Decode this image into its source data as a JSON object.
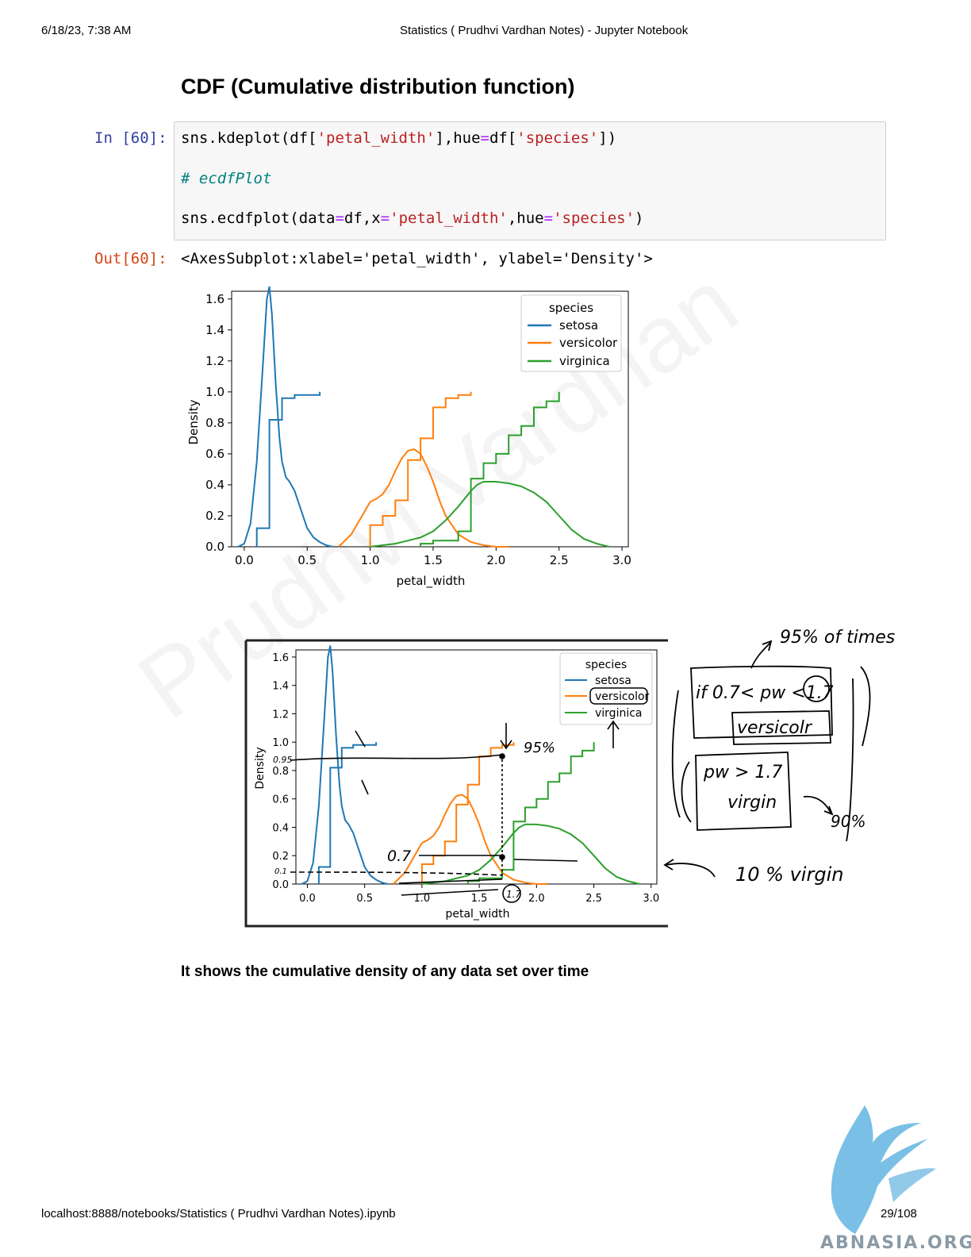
{
  "header": {
    "datetime": "6/18/23, 7:38 AM",
    "title": "Statistics ( Prudhvi Vardhan Notes) - Jupyter Notebook"
  },
  "section_title": "CDF (Cumulative distribution function)",
  "cell": {
    "in_prompt": "In [60]:",
    "code_lines": [
      "sns.kdeplot(df['petal_width'],hue=df['species'])",
      "# ecdfPlot",
      "sns.ecdfplot(data=df,x='petal_width',hue='species')"
    ],
    "out_prompt": "Out[60]:",
    "output_text": "<AxesSubplot:xlabel='petal_width', ylabel='Density'>"
  },
  "chart_data": [
    {
      "type": "line",
      "xlabel": "petal_width",
      "ylabel": "Density",
      "xlim": [
        -0.1,
        3.05
      ],
      "ylim": [
        0.0,
        1.65
      ],
      "xticks": [
        "0.0",
        "0.5",
        "1.0",
        "1.5",
        "2.0",
        "2.5",
        "3.0"
      ],
      "yticks": [
        "0.0",
        "0.2",
        "0.4",
        "0.6",
        "0.8",
        "1.0",
        "1.2",
        "1.4",
        "1.6"
      ],
      "legend_title": "species",
      "legend_position": "top-right",
      "colors": {
        "setosa": "#1f77b4",
        "versicolor": "#ff7f0e",
        "virginica": "#2ca02c"
      },
      "kde_series": [
        {
          "name": "setosa",
          "x": [
            -0.05,
            0.0,
            0.05,
            0.1,
            0.15,
            0.18,
            0.2,
            0.22,
            0.25,
            0.28,
            0.3,
            0.33,
            0.36,
            0.4,
            0.45,
            0.5,
            0.55,
            0.6,
            0.65,
            0.7
          ],
          "y": [
            0.0,
            0.02,
            0.15,
            0.55,
            1.2,
            1.6,
            1.68,
            1.5,
            1.05,
            0.7,
            0.55,
            0.45,
            0.42,
            0.36,
            0.24,
            0.12,
            0.06,
            0.03,
            0.01,
            0.0
          ]
        },
        {
          "name": "versicolor",
          "x": [
            0.75,
            0.85,
            0.95,
            1.0,
            1.05,
            1.1,
            1.15,
            1.2,
            1.25,
            1.3,
            1.35,
            1.4,
            1.45,
            1.5,
            1.55,
            1.6,
            1.7,
            1.8,
            1.9,
            2.0,
            2.1
          ],
          "y": [
            0.0,
            0.08,
            0.22,
            0.29,
            0.31,
            0.34,
            0.4,
            0.49,
            0.57,
            0.62,
            0.63,
            0.6,
            0.52,
            0.42,
            0.3,
            0.2,
            0.08,
            0.03,
            0.01,
            0.0,
            0.0
          ]
        },
        {
          "name": "virginica",
          "x": [
            1.0,
            1.2,
            1.4,
            1.5,
            1.6,
            1.7,
            1.8,
            1.85,
            1.9,
            2.0,
            2.1,
            2.2,
            2.3,
            2.4,
            2.5,
            2.6,
            2.7,
            2.8,
            2.9
          ],
          "y": [
            0.0,
            0.02,
            0.06,
            0.1,
            0.17,
            0.26,
            0.36,
            0.4,
            0.42,
            0.42,
            0.41,
            0.39,
            0.35,
            0.29,
            0.2,
            0.11,
            0.05,
            0.02,
            0.0
          ]
        }
      ],
      "ecdf_series": [
        {
          "name": "setosa",
          "x": [
            0.1,
            0.2,
            0.3,
            0.4,
            0.5,
            0.6
          ],
          "y": [
            0.12,
            0.82,
            0.96,
            0.98,
            0.98,
            1.0
          ]
        },
        {
          "name": "versicolor",
          "x": [
            1.0,
            1.1,
            1.2,
            1.3,
            1.4,
            1.5,
            1.6,
            1.7,
            1.8
          ],
          "y": [
            0.14,
            0.2,
            0.3,
            0.56,
            0.7,
            0.9,
            0.96,
            0.98,
            1.0
          ]
        },
        {
          "name": "virginica",
          "x": [
            1.4,
            1.5,
            1.7,
            1.8,
            1.9,
            2.0,
            2.1,
            2.2,
            2.3,
            2.4,
            2.5
          ],
          "y": [
            0.02,
            0.04,
            0.1,
            0.44,
            0.54,
            0.6,
            0.72,
            0.78,
            0.9,
            0.94,
            1.0
          ]
        }
      ]
    }
  ],
  "annotated_screenshot": {
    "legend_title": "species",
    "legend_items": [
      "setosa",
      "versicolor",
      "virginica"
    ],
    "xlabel": "petal_width",
    "ylabel": "Density",
    "xticks": [
      "0.0",
      "0.5",
      "1.0",
      "1.5",
      "2.0",
      "2.5",
      "3.0"
    ],
    "yticks": [
      "0.0",
      "0.2",
      "0.4",
      "0.6",
      "0.8",
      "1.0",
      "1.2",
      "1.4",
      "1.6"
    ]
  },
  "handwritten_notes": {
    "label_095": "0.95",
    "label_01": "0.1",
    "pct95": "95%",
    "pt07": "0.7",
    "pt17": "1.7",
    "times95": "95% of times",
    "if_rule": "if 0.7< pw <1.7",
    "versicolor": "versicolr",
    "pw_rule": "pw > 1.7",
    "virgin": "virgin",
    "pct90": "90%",
    "virgin10": "10 % virgin"
  },
  "caption": "It shows the cumulative density of any data set over time",
  "footer": {
    "url": "localhost:8888/notebooks/Statistics ( Prudhvi Vardhan Notes).ipynb",
    "page": "29/108",
    "logo_text": "ABNASIA.ORG"
  }
}
